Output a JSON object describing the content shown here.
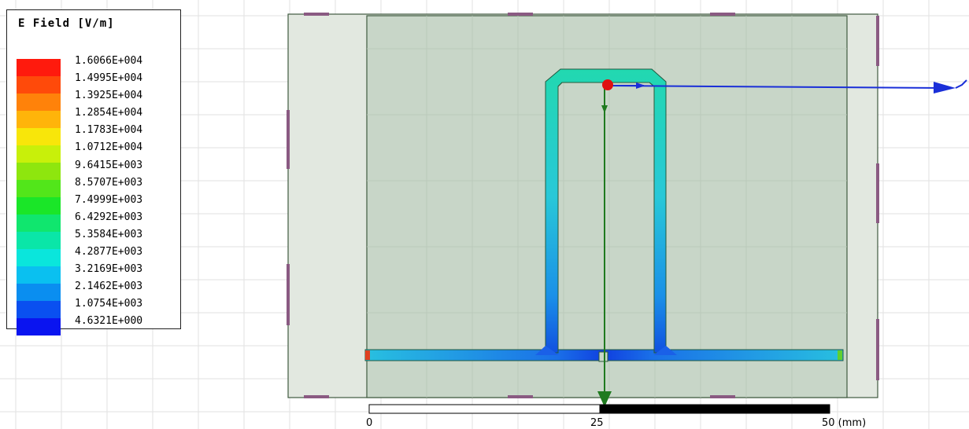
{
  "legend": {
    "title": "E Field [V/m]",
    "entries": [
      {
        "label": "1.6066E+004",
        "color": "#ff1a0d"
      },
      {
        "label": "1.4995E+004",
        "color": "#ff4a0a"
      },
      {
        "label": "1.3925E+004",
        "color": "#ff820a"
      },
      {
        "label": "1.2854E+004",
        "color": "#ffb40a"
      },
      {
        "label": "1.1783E+004",
        "color": "#f8e60a"
      },
      {
        "label": "1.0712E+004",
        "color": "#c8f00a"
      },
      {
        "label": "9.6415E+003",
        "color": "#8ee60e"
      },
      {
        "label": "8.5707E+003",
        "color": "#52e61a"
      },
      {
        "label": "7.4999E+003",
        "color": "#1ae628"
      },
      {
        "label": "6.4292E+003",
        "color": "#10e66e"
      },
      {
        "label": "5.3584E+003",
        "color": "#0ae6a8"
      },
      {
        "label": "4.2877E+003",
        "color": "#0ae6dc"
      },
      {
        "label": "3.2169E+003",
        "color": "#0ac0f0"
      },
      {
        "label": "2.1462E+003",
        "color": "#0a8ef0"
      },
      {
        "label": "1.0754E+003",
        "color": "#0a50f0"
      },
      {
        "label": "4.6321E+000",
        "color": "#0a14f0"
      }
    ]
  },
  "scale_bar": {
    "labels": [
      "0",
      "25",
      "50 (mm)"
    ]
  },
  "colors": {
    "axis_blue": "#1a2fd8",
    "axis_green": "#1f7a1f",
    "origin_red": "#e01010"
  }
}
